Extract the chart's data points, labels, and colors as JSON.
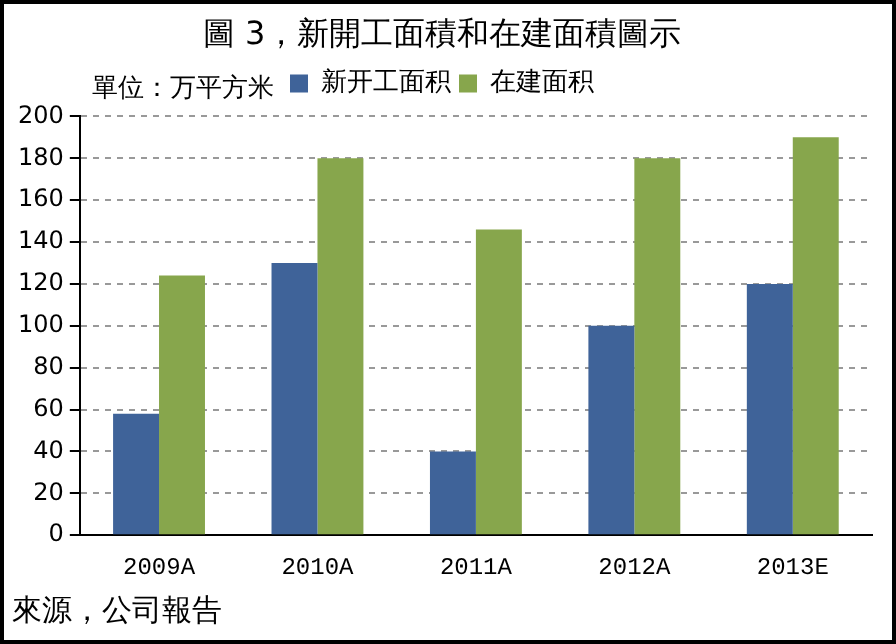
{
  "chart_data": {
    "type": "bar",
    "title": "圖 3，新開工面積和在建面積圖示",
    "categories": [
      "2009A",
      "2010A",
      "2011A",
      "2012A",
      "2013E"
    ],
    "series": [
      {
        "name": "新开工面积",
        "color": "#3f6399",
        "values": [
          58,
          130,
          40,
          100,
          120
        ]
      },
      {
        "name": "在建面积",
        "color": "#87a64c",
        "values": [
          124,
          180,
          146,
          180,
          190
        ]
      }
    ],
    "ylim": [
      0,
      200
    ],
    "yticks": [
      0,
      20,
      40,
      60,
      80,
      100,
      120,
      140,
      160,
      180,
      200
    ],
    "grid": "y",
    "legend": "top",
    "annotations": [
      "單位：万平方米",
      "來源，公司報告"
    ]
  }
}
